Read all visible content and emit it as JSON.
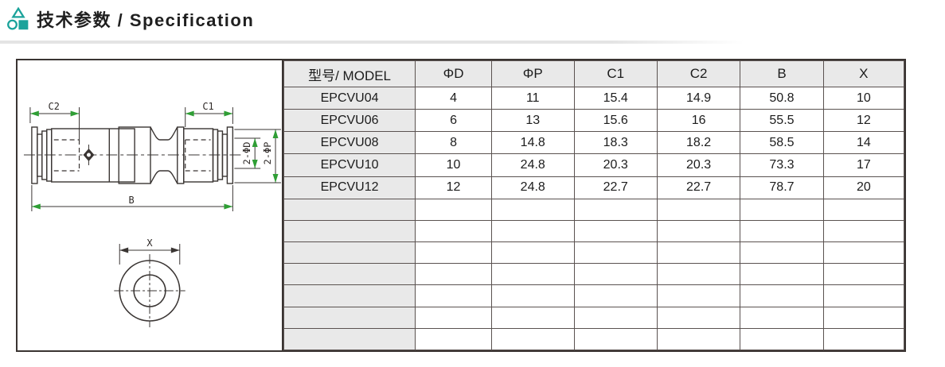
{
  "page": {
    "title": "技术参数 / Specification"
  },
  "colors": {
    "accent_teal": "#1ba39b",
    "table_grid": "#5a5250",
    "table_outer_border": "#3a3432",
    "gray_cell": "#e9e9e9",
    "drawing_line": "#3a3533",
    "dimension_arrow_green": "#2f9e35"
  },
  "table": {
    "columns": [
      "型号/ MODEL",
      "ΦD",
      "ΦP",
      "C1",
      "C2",
      "B",
      "X"
    ],
    "rows": [
      [
        "EPCVU04",
        "4",
        "11",
        "15.4",
        "14.9",
        "50.8",
        "10"
      ],
      [
        "EPCVU06",
        "6",
        "13",
        "15.6",
        "16",
        "55.5",
        "12"
      ],
      [
        "EPCVU08",
        "8",
        "14.8",
        "18.3",
        "18.2",
        "58.5",
        "14"
      ],
      [
        "EPCVU10",
        "10",
        "24.8",
        "20.3",
        "20.3",
        "73.3",
        "17"
      ],
      [
        "EPCVU12",
        "12",
        "24.8",
        "22.7",
        "22.7",
        "78.7",
        "20"
      ]
    ],
    "empty_rows": 7
  },
  "drawing": {
    "labels": {
      "c2": "C2",
      "c1": "C1",
      "b": "B",
      "x": "X",
      "two_phi_d": "2-ΦD",
      "two_phi_p": "2-ΦP"
    }
  }
}
